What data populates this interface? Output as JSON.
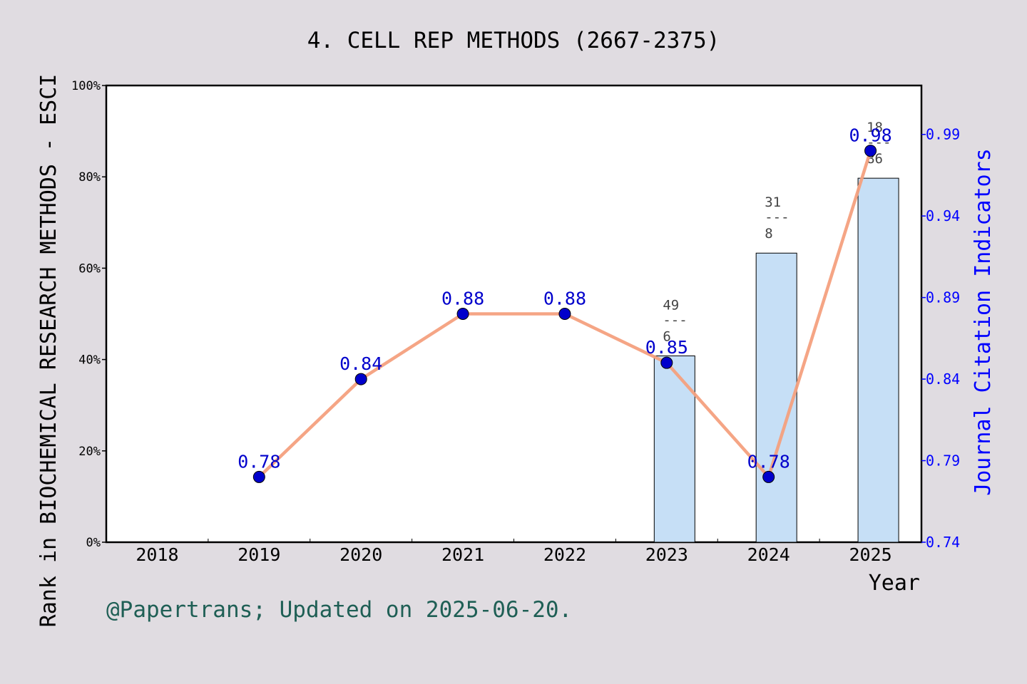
{
  "chart_data": {
    "type": "bar+line",
    "title": "4. CELL REP METHODS (2667-2375)",
    "xlabel": "Year",
    "ylabel_left": "Rank in BIOCHEMICAL RESEARCH METHODS - ESCI",
    "ylabel_right": "Journal Citation Indicators",
    "categories": [
      "2018",
      "2019",
      "2020",
      "2021",
      "2022",
      "2023",
      "2024",
      "2025"
    ],
    "left_axis": {
      "ylim": [
        0,
        100
      ],
      "ticks": [
        "0%",
        "20%",
        "40%",
        "60%",
        "80%",
        "100%"
      ],
      "tick_values": [
        0,
        20,
        40,
        60,
        80,
        100
      ]
    },
    "right_axis": {
      "ylim": [
        0.74,
        1.02
      ],
      "ticks": [
        "0.74",
        "0.79",
        "0.84",
        "0.89",
        "0.94",
        "0.99"
      ],
      "tick_values": [
        0.74,
        0.79,
        0.84,
        0.89,
        0.94,
        0.99
      ]
    },
    "bars": [
      {
        "year": "2023",
        "value": 40.8,
        "rank_label": {
          "top": "49",
          "sep": "---",
          "bottom": "6"
        }
      },
      {
        "year": "2024",
        "value": 63.3,
        "rank_label": {
          "top": "31",
          "sep": "---",
          "bottom": "8"
        }
      },
      {
        "year": "2025",
        "value": 79.7,
        "rank_label": {
          "top": "18",
          "sep": "---",
          "bottom": "86"
        }
      }
    ],
    "line": [
      {
        "year": "2019",
        "value": 0.78,
        "label": "0.78"
      },
      {
        "year": "2020",
        "value": 0.84,
        "label": "0.84"
      },
      {
        "year": "2021",
        "value": 0.88,
        "label": "0.88"
      },
      {
        "year": "2022",
        "value": 0.88,
        "label": "0.88"
      },
      {
        "year": "2023",
        "value": 0.85,
        "label": "0.85"
      },
      {
        "year": "2024",
        "value": 0.78,
        "label": "0.78"
      },
      {
        "year": "2025",
        "value": 0.98,
        "label": "0.98"
      }
    ],
    "colors": {
      "background": "#e0dce1",
      "plot_bg": "#ffffff",
      "bar_fill": "#c6dff6",
      "bar_stroke": "#000000",
      "line": "#f4a07e",
      "marker": "#0000cc",
      "value_label": "#0000cc",
      "rank_label": "#444444",
      "right_axis": "#0000ff",
      "footer": "#1f5f55"
    },
    "footer": "@Papertrans; Updated on 2025-06-20."
  }
}
